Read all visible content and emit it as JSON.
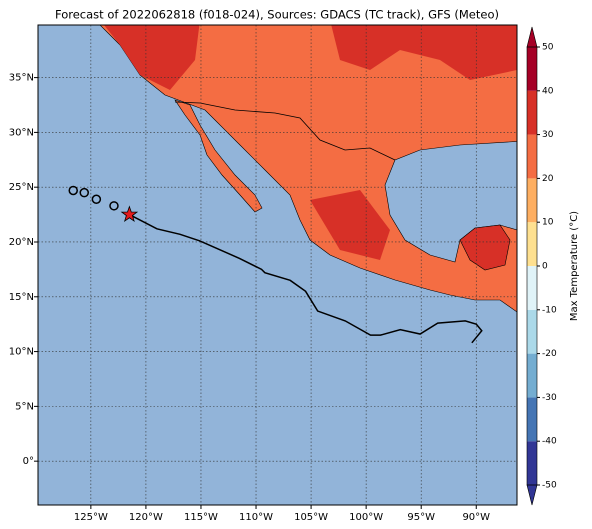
{
  "map": {
    "title": "Forecast of 2022062818 (f018-024), Sources: GDACS (TC track), GFS (Meteo)",
    "lonlim": [
      -129.8,
      -86.3
    ],
    "latlim": [
      -4,
      39.8
    ],
    "lon_ticks": [
      {
        "value": -125,
        "label": "125°W"
      },
      {
        "value": -120,
        "label": "120°W"
      },
      {
        "value": -115,
        "label": "115°W"
      },
      {
        "value": -110,
        "label": "110°W"
      },
      {
        "value": -105,
        "label": "105°W"
      },
      {
        "value": -100,
        "label": "100°W"
      },
      {
        "value": -95,
        "label": "95°W"
      },
      {
        "value": -90,
        "label": "90°W"
      }
    ],
    "lat_ticks": [
      {
        "value": 35,
        "label": "35°N"
      },
      {
        "value": 30,
        "label": "30°N"
      },
      {
        "value": 25,
        "label": "25°N"
      },
      {
        "value": 20,
        "label": "20°N"
      },
      {
        "value": 15,
        "label": "15°N"
      },
      {
        "value": 10,
        "label": "10°N"
      },
      {
        "value": 5,
        "label": "5°N"
      },
      {
        "value": 0,
        "label": "0°"
      }
    ],
    "track": {
      "lon": [
        -121.5,
        -119.0,
        -116.9,
        -115.1,
        -111.5,
        -109.5,
        -109.2,
        -106.9,
        -105.5,
        -104.4,
        -101.9,
        -99.6,
        -98.7,
        -96.9,
        -95.1,
        -93.5,
        -91.0,
        -90.0,
        -89.5,
        -90.4
      ],
      "lat": [
        22.5,
        21.2,
        20.7,
        20.1,
        18.5,
        17.5,
        17.2,
        16.5,
        15.5,
        13.7,
        12.8,
        11.5,
        11.5,
        12.0,
        11.6,
        12.6,
        12.8,
        12.5,
        11.9,
        10.8
      ]
    },
    "past_positions": {
      "lon": [
        -126.6,
        -125.6,
        -124.5,
        -122.9
      ],
      "lat": [
        24.7,
        24.5,
        23.9,
        23.3
      ]
    },
    "current_position": {
      "lon": -121.5,
      "lat": 22.5
    },
    "colorbar": {
      "label": "Max Temperature (°C)",
      "ticks": [
        -50,
        -40,
        -30,
        -20,
        -10,
        0,
        10,
        20,
        30,
        40,
        50
      ],
      "colors": [
        "#313695",
        "#4575b4",
        "#74add1",
        "#abd9e9",
        "#e0f3f8",
        "#fee090",
        "#fdae61",
        "#f46d43",
        "#d73027",
        "#a50026"
      ]
    }
  }
}
